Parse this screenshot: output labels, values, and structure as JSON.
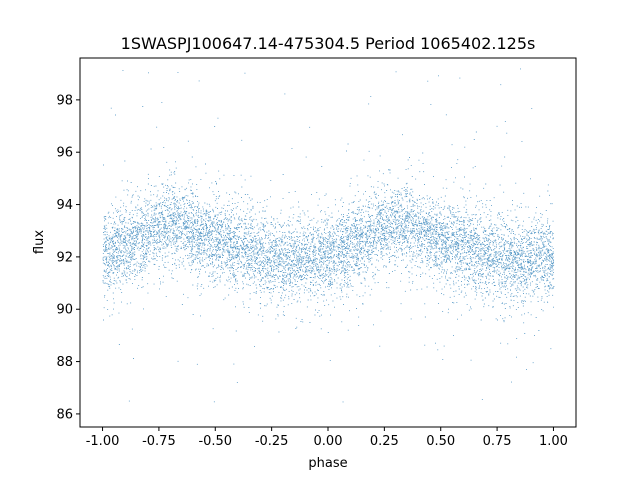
{
  "chart_data": {
    "type": "scatter",
    "title": "1SWASPJ100647.14-475304.5 Period 1065402.125s",
    "xlabel": "phase",
    "ylabel": "flux",
    "xlim": [
      -1.1,
      1.1
    ],
    "ylim": [
      85.5,
      99.6
    ],
    "xticks": [
      "-1.00",
      "-0.75",
      "-0.50",
      "-0.25",
      "0.00",
      "0.25",
      "0.50",
      "0.75",
      "1.00"
    ],
    "xtick_values": [
      -1.0,
      -0.75,
      -0.5,
      -0.25,
      0.0,
      0.25,
      0.5,
      0.75,
      1.0
    ],
    "yticks": [
      "86",
      "88",
      "90",
      "92",
      "94",
      "96",
      "98"
    ],
    "ytick_values": [
      86,
      88,
      90,
      92,
      94,
      96,
      98
    ],
    "grid": false,
    "marker_color": "#1f77b4",
    "series": [
      {
        "phase_range": [
          -1.0,
          1.0
        ],
        "mean_flux_profile": {
          "phase": [
            -1.0,
            -0.9,
            -0.8,
            -0.7,
            -0.6,
            -0.5,
            -0.4,
            -0.3,
            -0.2,
            -0.1,
            0.0,
            0.1,
            0.2,
            0.3,
            0.4,
            0.5,
            0.6,
            0.7,
            0.8,
            0.9,
            1.0
          ],
          "flux": [
            92.1,
            92.4,
            92.9,
            93.3,
            93.0,
            92.6,
            92.4,
            92.1,
            91.8,
            91.9,
            92.0,
            92.4,
            92.9,
            93.3,
            93.0,
            92.6,
            92.4,
            92.1,
            91.8,
            91.9,
            92.0
          ]
        },
        "typical_scatter": 0.9,
        "point_count": 9000,
        "outlier_range": [
          86.3,
          99.2
        ]
      }
    ]
  }
}
